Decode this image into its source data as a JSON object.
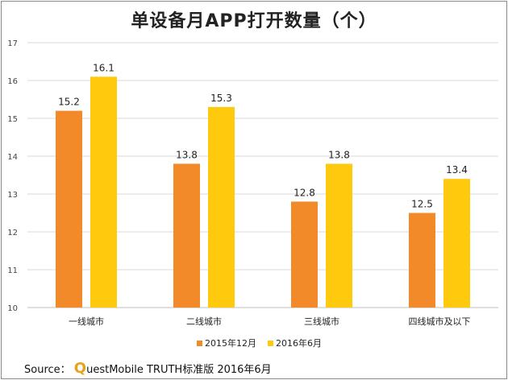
{
  "title": "单设备月APP打开数量（个）",
  "source": {
    "label": "Source：",
    "logo_letter": "Q",
    "text": "uestMobile TRUTH标准版 2016年6月"
  },
  "chart_data": {
    "type": "bar",
    "title": "单设备月APP打开数量（个）",
    "categories": [
      "一线城市",
      "二线城市",
      "三线城市",
      "四线城市及以下"
    ],
    "series": [
      {
        "name": "2015年12月",
        "values": [
          15.2,
          13.8,
          12.8,
          12.5
        ],
        "color": "#f28a2a"
      },
      {
        "name": "2016年6月",
        "values": [
          16.1,
          15.3,
          13.8,
          13.4
        ],
        "color": "#ffc90e"
      }
    ],
    "ylim": [
      10,
      17
    ],
    "yticks": [
      "10",
      "11",
      "12",
      "13",
      "14",
      "15",
      "16",
      "17"
    ],
    "grid": true,
    "legend_position": "bottom"
  }
}
